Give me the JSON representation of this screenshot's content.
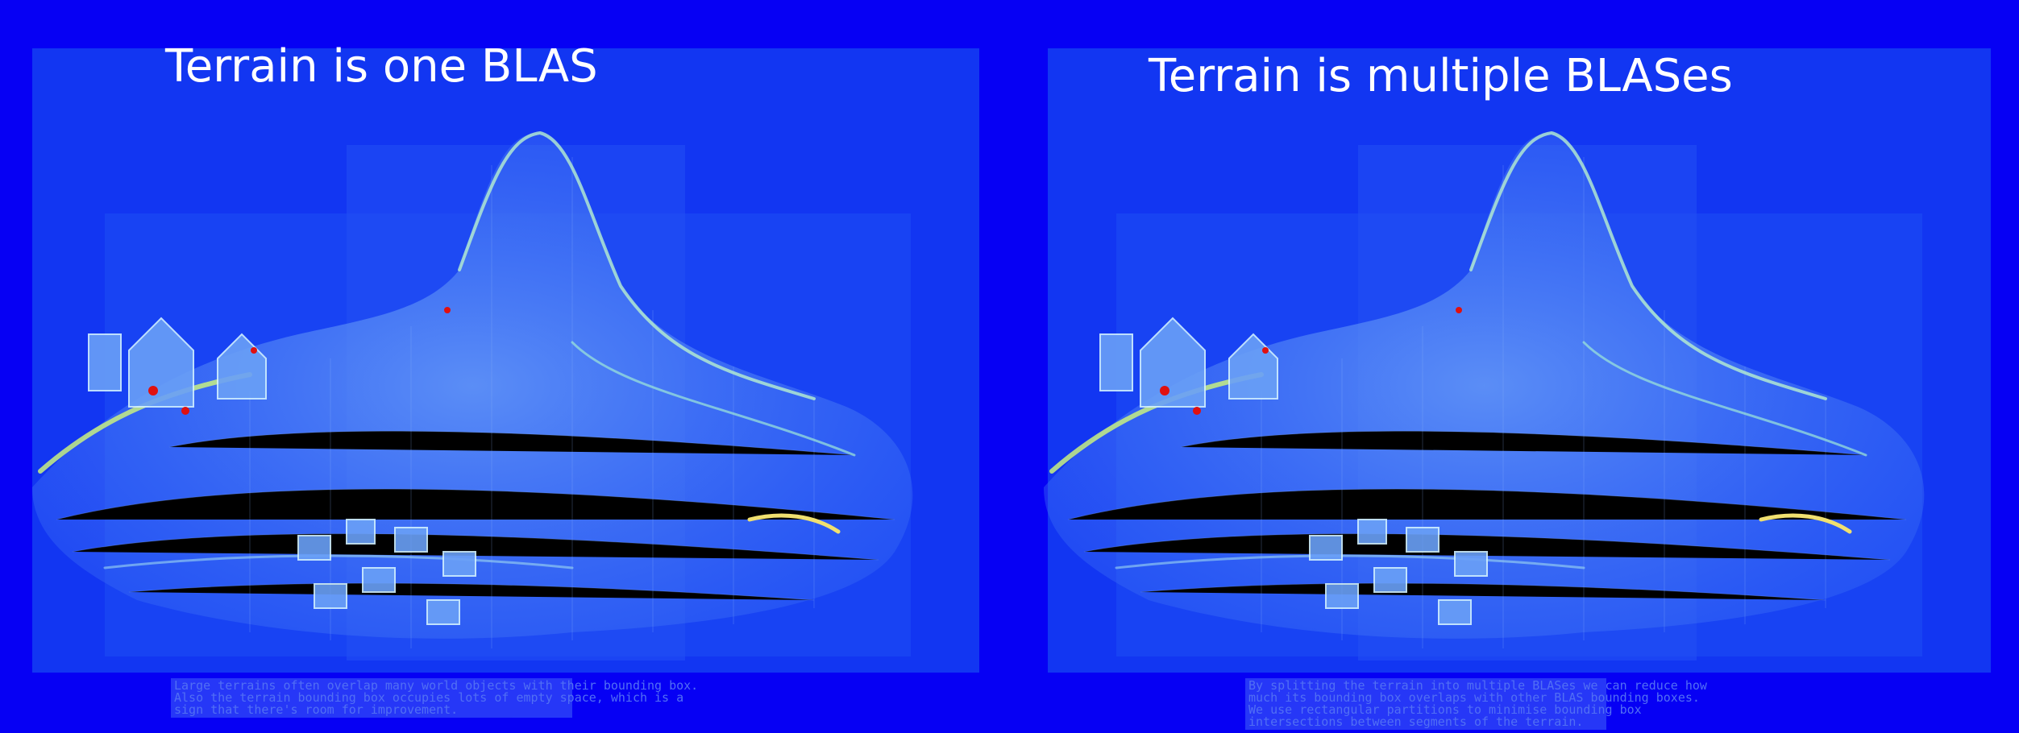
{
  "panels": [
    {
      "title": "Terrain is one BLAS",
      "caption": [
        "Large terrains often overlap many world objects with their bounding box.",
        "Also the terrain bounding box occupies lots of empty space, which is a",
        "sign that there's room for improvement."
      ]
    },
    {
      "title": "Terrain is multiple BLASes",
      "caption": [
        "By splitting the terrain into multiple BLASes we can reduce how",
        "much its bounding box overlaps with other BLAS bounding boxes.",
        "We use rectangular partitions to minimise bounding box",
        "intersections between segments of the terrain."
      ]
    }
  ],
  "colors": {
    "background": "#0600f4",
    "panel": "#1236f2",
    "heat_low": "#2a5cf5",
    "heat_mid": "#7fe3c0",
    "heat_high": "#e8f060",
    "heat_peak": "#d01010"
  }
}
